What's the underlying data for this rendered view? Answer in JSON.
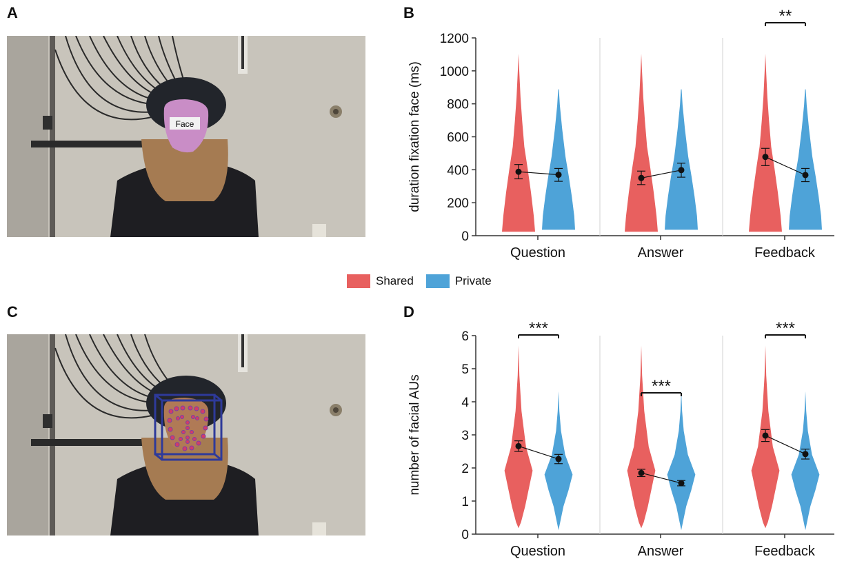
{
  "panels": {
    "a": {
      "letter": "A",
      "face_label": "Face"
    },
    "b": {
      "letter": "B"
    },
    "c": {
      "letter": "C"
    },
    "d": {
      "letter": "D"
    }
  },
  "legend": [
    {
      "label": "Shared",
      "color": "#E8605F"
    },
    {
      "label": "Private",
      "color": "#4EA3D8"
    }
  ],
  "chart_data": [
    {
      "type": "violin",
      "panel": "B",
      "ylabel": "duration fixation face (ms)",
      "ylim": [
        0,
        1200
      ],
      "yticks": [
        0,
        200,
        400,
        600,
        800,
        1000,
        1200
      ],
      "categories": [
        "Question",
        "Answer",
        "Feedback"
      ],
      "series": [
        {
          "name": "Shared",
          "color": "#E8605F",
          "means": [
            388,
            350,
            478
          ],
          "ci": [
            [
              345,
              432
            ],
            [
              310,
              392
            ],
            [
              425,
              530
            ]
          ]
        },
        {
          "name": "Private",
          "color": "#4EA3D8",
          "means": [
            370,
            398,
            368
          ],
          "ci": [
            [
              330,
              408
            ],
            [
              355,
              440
            ],
            [
              328,
              408
            ]
          ]
        }
      ],
      "significance": [
        {
          "category": "Feedback",
          "label": "**"
        }
      ]
    },
    {
      "type": "violin",
      "panel": "D",
      "ylabel": "number of facial AUs",
      "ylim": [
        0,
        6
      ],
      "yticks": [
        0,
        1,
        2,
        3,
        4,
        5,
        6
      ],
      "categories": [
        "Question",
        "Answer",
        "Feedback"
      ],
      "series": [
        {
          "name": "Shared",
          "color": "#E8605F",
          "means": [
            2.66,
            1.85,
            2.98
          ],
          "ci": [
            [
              2.5,
              2.82
            ],
            [
              1.74,
              1.96
            ],
            [
              2.8,
              3.16
            ]
          ]
        },
        {
          "name": "Private",
          "color": "#4EA3D8",
          "means": [
            2.27,
            1.54,
            2.42
          ],
          "ci": [
            [
              2.13,
              2.41
            ],
            [
              1.46,
              1.62
            ],
            [
              2.27,
              2.57
            ]
          ]
        }
      ],
      "significance": [
        {
          "category": "Question",
          "label": "***"
        },
        {
          "category": "Answer",
          "label": "***"
        },
        {
          "category": "Feedback",
          "label": "***"
        }
      ]
    }
  ]
}
